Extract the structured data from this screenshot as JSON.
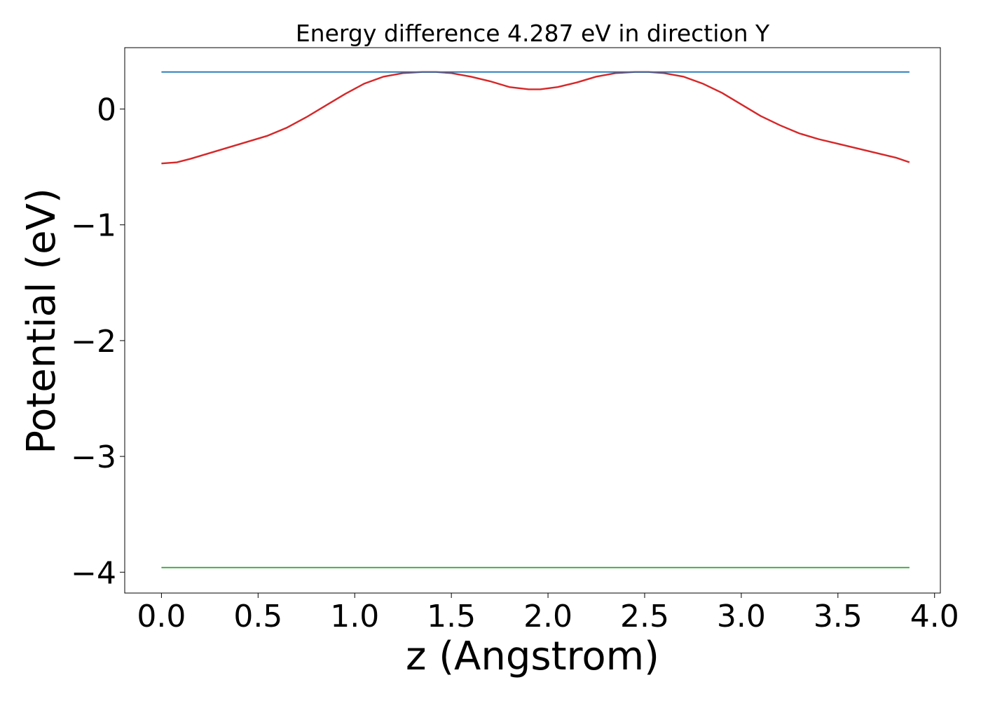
{
  "chart_data": {
    "type": "line",
    "title": "Energy difference 4.287 eV in direction Y",
    "xlabel": "z (Angstrom)",
    "ylabel": "Potential (eV)",
    "xlim": [
      -0.19,
      4.03
    ],
    "ylim": [
      -4.18,
      0.53
    ],
    "xticks": [
      0.0,
      0.5,
      1.0,
      1.5,
      2.0,
      2.5,
      3.0,
      3.5,
      4.0
    ],
    "xtick_labels": [
      "0.0",
      "0.5",
      "1.0",
      "1.5",
      "2.0",
      "2.5",
      "3.0",
      "3.5",
      "4.0"
    ],
    "yticks": [
      0,
      -1,
      -2,
      -3,
      -4
    ],
    "ytick_labels": [
      "0",
      "−1",
      "−2",
      "−3",
      "−4"
    ],
    "grid": false,
    "legend": "none",
    "series": [
      {
        "color": "#d62728",
        "x": [
          0.0,
          0.08,
          0.15,
          0.25,
          0.35,
          0.45,
          0.55,
          0.65,
          0.75,
          0.85,
          0.95,
          1.05,
          1.15,
          1.25,
          1.35,
          1.42,
          1.5,
          1.6,
          1.7,
          1.8,
          1.9,
          1.96,
          2.05,
          2.15,
          2.25,
          2.35,
          2.45,
          2.52,
          2.6,
          2.7,
          2.8,
          2.9,
          3.0,
          3.1,
          3.2,
          3.3,
          3.4,
          3.5,
          3.6,
          3.7,
          3.8,
          3.87
        ],
        "y": [
          -0.47,
          -0.46,
          -0.43,
          -0.38,
          -0.33,
          -0.28,
          -0.23,
          -0.16,
          -0.07,
          0.03,
          0.13,
          0.22,
          0.28,
          0.31,
          0.32,
          0.32,
          0.31,
          0.28,
          0.24,
          0.19,
          0.17,
          0.17,
          0.19,
          0.23,
          0.28,
          0.31,
          0.32,
          0.32,
          0.31,
          0.28,
          0.22,
          0.14,
          0.04,
          -0.06,
          -0.14,
          -0.21,
          -0.26,
          -0.3,
          -0.34,
          -0.38,
          -0.42,
          -0.46
        ]
      },
      {
        "color": "#1f77b4",
        "x": [
          0.0,
          3.87
        ],
        "y": [
          0.32,
          0.32
        ]
      },
      {
        "color": "#2ca02c",
        "x": [
          0.0,
          3.87
        ],
        "y": [
          -3.96,
          -3.96
        ]
      }
    ]
  }
}
